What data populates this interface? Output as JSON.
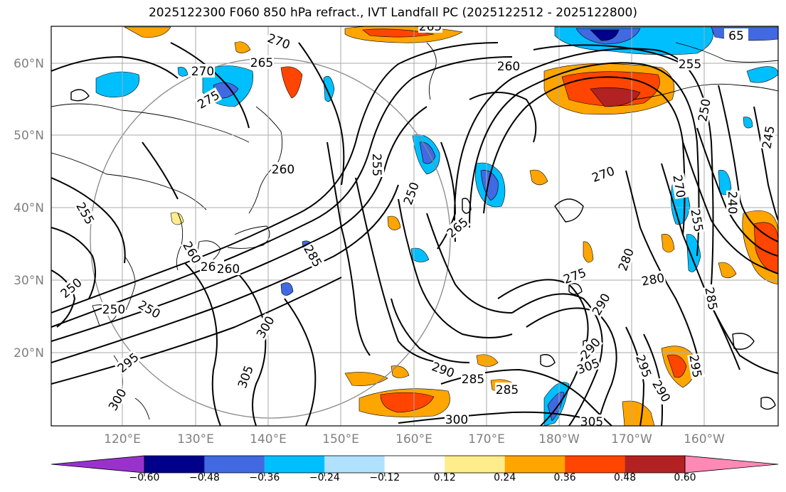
{
  "title": "2025122300 F060 850 hPa refract., IVT Landfall PC (2025122512 - 2025122800)",
  "lat_labels": [
    "60°N",
    "50°N",
    "40°N",
    "30°N",
    "20°N"
  ],
  "lon_labels": [
    "120°E",
    "130°E",
    "140°E",
    "150°E",
    "160°E",
    "170°E",
    "180°W",
    "170°W",
    "160°W"
  ],
  "contour_labels": [
    {
      "text": "265",
      "rot": 0
    },
    {
      "text": "270",
      "rot": 20
    },
    {
      "text": "265",
      "rot": 0
    },
    {
      "text": "270",
      "rot": 0
    },
    {
      "text": "275",
      "rot": -30
    },
    {
      "text": "260",
      "rot": 0
    },
    {
      "text": "255",
      "rot": 90
    },
    {
      "text": "250",
      "rot": -70
    },
    {
      "text": "265",
      "rot": -40
    },
    {
      "text": "260",
      "rot": 0
    },
    {
      "text": "255",
      "rot": 0
    },
    {
      "text": "65",
      "rot": 0
    },
    {
      "text": "250",
      "rot": -80
    },
    {
      "text": "245",
      "rot": -80
    },
    {
      "text": "270",
      "rot": -20
    },
    {
      "text": "240",
      "rot": 90
    },
    {
      "text": "270",
      "rot": 80
    },
    {
      "text": "255",
      "rot": 80
    },
    {
      "text": "255",
      "rot": 60
    },
    {
      "text": "260",
      "rot": 60
    },
    {
      "text": "265",
      "rot": 0
    },
    {
      "text": "250",
      "rot": 30
    },
    {
      "text": "285",
      "rot": 60
    },
    {
      "text": "275",
      "rot": -20
    },
    {
      "text": "280",
      "rot": -70
    },
    {
      "text": "280",
      "rot": -10
    },
    {
      "text": "290",
      "rot": -60
    },
    {
      "text": "285",
      "rot": 80
    },
    {
      "text": "300",
      "rot": -60
    },
    {
      "text": "305",
      "rot": -70
    },
    {
      "text": "290",
      "rot": -50
    },
    {
      "text": "305",
      "rot": -20
    },
    {
      "text": "290",
      "rot": 20
    },
    {
      "text": "285",
      "rot": 0
    },
    {
      "text": "285",
      "rot": 0
    },
    {
      "text": "300",
      "rot": 0
    },
    {
      "text": "305",
      "rot": 0
    },
    {
      "text": "250",
      "rot": -40
    },
    {
      "text": "250",
      "rot": 0
    },
    {
      "text": "295",
      "rot": -40
    },
    {
      "text": "300",
      "rot": -60
    },
    {
      "text": "260",
      "rot": 0
    },
    {
      "text": "295",
      "rot": 70
    },
    {
      "text": "290",
      "rot": 60
    },
    {
      "text": "295",
      "rot": 80
    }
  ],
  "colorbar": {
    "colors": [
      "#9932cc",
      "#00008b",
      "#4169e1",
      "#00bfff",
      "#b0e2ff",
      "#ffffff",
      "#ffec8b",
      "#ffa500",
      "#ff4500",
      "#b22222",
      "#ff89b5"
    ],
    "tick_labels": [
      "−0.60",
      "−0.48",
      "−0.36",
      "−0.24",
      "−0.12",
      "0.12",
      "0.24",
      "0.36",
      "0.48",
      "0.60"
    ]
  }
}
